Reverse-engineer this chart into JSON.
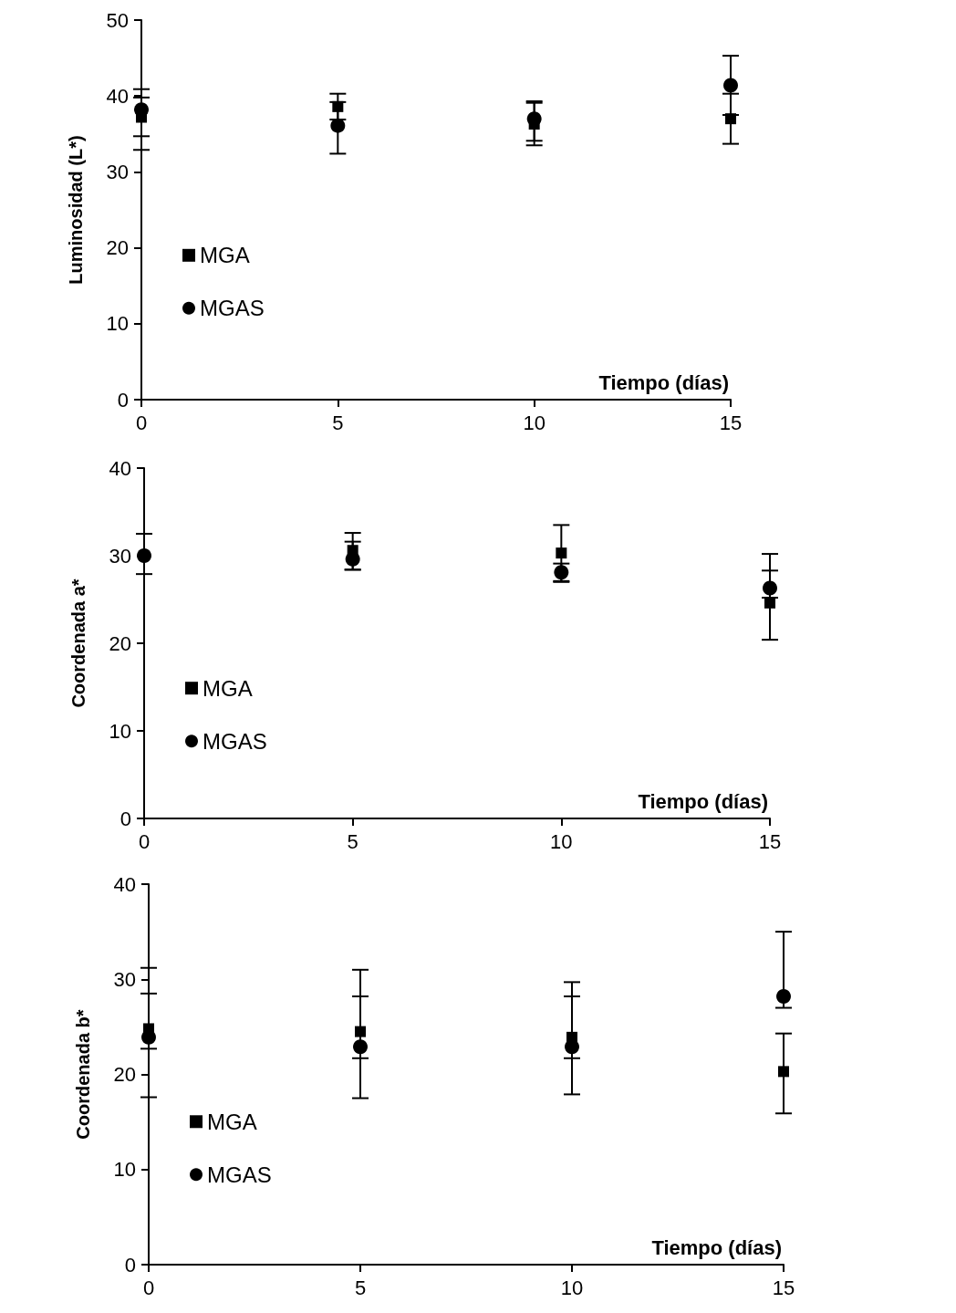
{
  "chart_data": [
    {
      "type": "scatter",
      "ylabel": "Luminosidad (L*)",
      "xlabel": "Tiempo (días)",
      "x": [
        0,
        5,
        10,
        15
      ],
      "xlim": [
        0,
        15
      ],
      "xticks": [
        0,
        5,
        10,
        15
      ],
      "ylim": [
        0,
        50
      ],
      "yticks": [
        0,
        10,
        20,
        30,
        40,
        50
      ],
      "grid": false,
      "legend": "left",
      "series": [
        {
          "name": "MGA",
          "color": "#000000",
          "marker": "square",
          "values": [
            37.2,
            38.6,
            36.3,
            37.0
          ],
          "errors": [
            [
              34.7,
              39.8
            ],
            [
              36.9,
              40.3
            ],
            [
              34.1,
              39.1
            ],
            [
              33.7,
              40.3
            ]
          ]
        },
        {
          "name": "MGAS",
          "color": "#000000",
          "marker": "circle",
          "values": [
            38.2,
            36.1,
            37.0,
            41.4
          ],
          "errors": [
            [
              32.9,
              40.9
            ],
            [
              32.4,
              39.2
            ],
            [
              33.5,
              39.3
            ],
            [
              37.5,
              45.3
            ]
          ]
        }
      ]
    },
    {
      "type": "scatter",
      "ylabel": "Coordenada a*",
      "xlabel": "Tiempo (días)",
      "x": [
        0,
        5,
        10,
        15
      ],
      "xlim": [
        0,
        15
      ],
      "xticks": [
        0,
        5,
        10,
        15
      ],
      "ylim": [
        0,
        40
      ],
      "yticks": [
        0,
        10,
        20,
        30,
        40
      ],
      "grid": false,
      "legend": "left",
      "series": [
        {
          "name": "MGA",
          "color": "#000000",
          "marker": "square",
          "values": [
            null,
            30.6,
            30.3,
            24.6
          ],
          "errors": [
            null,
            [
              28.4,
              32.6
            ],
            [
              27.1,
              33.5
            ],
            [
              20.4,
              28.3
            ]
          ]
        },
        {
          "name": "MGAS",
          "color": "#000000",
          "marker": "circle",
          "values": [
            30.0,
            29.6,
            28.1,
            26.3
          ],
          "errors": [
            [
              27.9,
              32.5
            ],
            [
              28.4,
              31.6
            ],
            [
              27.0,
              29.1
            ],
            [
              25.2,
              30.2
            ]
          ]
        }
      ]
    },
    {
      "type": "scatter",
      "ylabel": "Coordenada b*",
      "xlabel": "Tiempo (días)",
      "x": [
        0,
        5,
        10,
        15
      ],
      "xlim": [
        0,
        15
      ],
      "xticks": [
        0,
        5,
        10,
        15
      ],
      "ylim": [
        0,
        40
      ],
      "yticks": [
        0,
        10,
        20,
        30,
        40
      ],
      "grid": false,
      "legend": "left",
      "series": [
        {
          "name": "MGA",
          "color": "#000000",
          "marker": "square",
          "values": [
            24.8,
            24.5,
            23.9,
            20.3
          ],
          "errors": [
            [
              17.6,
              31.2
            ],
            [
              21.7,
              31.0
            ],
            [
              17.9,
              29.7
            ],
            [
              15.9,
              24.3
            ]
          ]
        },
        {
          "name": "MGAS",
          "color": "#000000",
          "marker": "circle",
          "values": [
            23.9,
            22.9,
            22.9,
            28.2
          ],
          "errors": [
            [
              22.7,
              28.5
            ],
            [
              17.5,
              28.2
            ],
            [
              21.7,
              28.2
            ],
            [
              27.0,
              35.0
            ]
          ]
        }
      ]
    }
  ]
}
